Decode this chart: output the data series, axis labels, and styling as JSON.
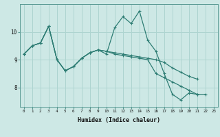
{
  "xlabel": "Humidex (Indice chaleur)",
  "ylabel": "",
  "background_color": "#cde8e5",
  "grid_color": "#aed4d0",
  "line_color": "#2e7d74",
  "x": [
    0,
    1,
    2,
    3,
    4,
    5,
    6,
    7,
    8,
    9,
    10,
    11,
    12,
    13,
    14,
    15,
    16,
    17,
    18,
    19,
    20,
    21,
    22,
    23
  ],
  "line1": [
    9.2,
    9.5,
    9.6,
    10.2,
    9.0,
    8.6,
    8.75,
    9.05,
    9.25,
    9.35,
    9.2,
    10.15,
    10.55,
    10.3,
    10.75,
    9.7,
    9.3,
    8.5,
    7.75,
    7.55,
    7.8,
    7.75,
    7.75,
    null
  ],
  "line2": [
    9.2,
    9.5,
    9.6,
    10.2,
    9.0,
    8.6,
    8.75,
    9.05,
    9.25,
    9.35,
    9.3,
    9.25,
    9.2,
    9.15,
    9.1,
    9.05,
    9.0,
    8.9,
    8.7,
    8.55,
    8.4,
    8.3,
    null,
    null
  ],
  "line3": [
    9.2,
    9.5,
    9.6,
    10.2,
    9.0,
    8.6,
    8.75,
    9.05,
    9.25,
    9.35,
    9.3,
    9.2,
    9.15,
    9.1,
    9.05,
    9.0,
    8.5,
    8.35,
    8.2,
    8.05,
    7.9,
    7.75,
    null,
    null
  ],
  "ylim_min": 7.3,
  "ylim_max": 11.0,
  "yticks": [
    8,
    9,
    10
  ],
  "xticks": [
    0,
    1,
    2,
    3,
    4,
    5,
    6,
    7,
    8,
    9,
    10,
    11,
    12,
    13,
    14,
    15,
    16,
    17,
    18,
    19,
    20,
    21,
    22,
    23
  ]
}
